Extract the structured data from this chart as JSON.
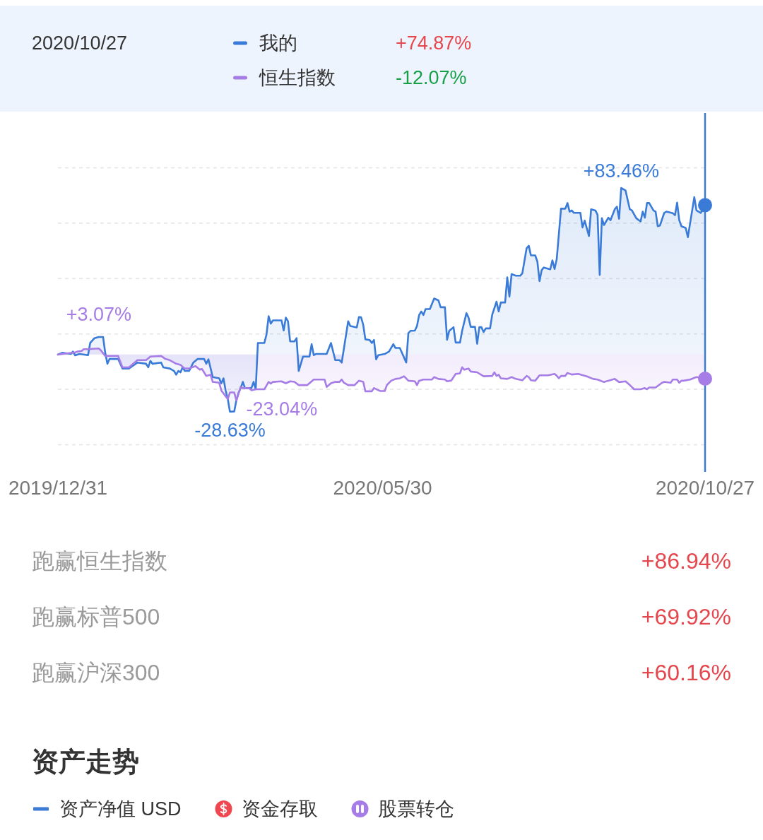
{
  "chart_data": [
    {
      "type": "area",
      "legend": "top",
      "grid": "y",
      "tick_labels": "x",
      "xlim": [
        "2019-12-31",
        "2020-10-27"
      ],
      "xticks": [
        {
          "value": "2019-12-31",
          "label": "2019/12/31"
        },
        {
          "value": "2020-05-30",
          "label": "2020/05/30"
        },
        {
          "value": "2020-10-27",
          "label": "2020/10/27"
        }
      ],
      "ylim": [
        -58.8,
        121
      ],
      "yticks": [
        {
          "value": 93.6,
          "label": null
        },
        {
          "value": 65.9,
          "label": null
        },
        {
          "value": 38.1,
          "label": null
        },
        {
          "value": 10.3,
          "label": null
        },
        {
          "value": -17.4,
          "label": null
        },
        {
          "value": -45.2,
          "label": null
        }
      ],
      "ref_lines": [
        {
          "axis": "x",
          "value": "2020-10-27",
          "color": "#3a7bd8"
        }
      ],
      "annotations": [
        "2020/10/27",
        "+74.87%",
        "-12.07%"
      ],
      "series": [
        {
          "name": "我的",
          "color": "#3a7bd8",
          "x": [
            "2019-12-31",
            "2020-01-02",
            "2020-01-06",
            "2020-01-07",
            "2020-01-08",
            "2020-01-10",
            "2020-01-14",
            "2020-01-15",
            "2020-01-17",
            "2020-01-19",
            "2020-01-21",
            "2020-01-22",
            "2020-01-23",
            "2020-01-24",
            "2020-01-28",
            "2020-01-30",
            "2020-02-02",
            "2020-02-06",
            "2020-02-10",
            "2020-02-11",
            "2020-02-12",
            "2020-02-13",
            "2020-02-17",
            "2020-02-18",
            "2020-02-21",
            "2020-02-23",
            "2020-02-24",
            "2020-02-25",
            "2020-02-26",
            "2020-02-27",
            "2020-02-28",
            "2020-03-01",
            "2020-03-03",
            "2020-03-05",
            "2020-03-08",
            "2020-03-09",
            "2020-03-10",
            "2020-03-12",
            "2020-03-15",
            "2020-03-16",
            "2020-03-17",
            "2020-03-18",
            "2020-03-19",
            "2020-03-20",
            "2020-03-22",
            "2020-03-23",
            "2020-03-24",
            "2020-03-25",
            "2020-03-26",
            "2020-03-27",
            "2020-03-30",
            "2020-03-31",
            "2020-04-01",
            "2020-04-02",
            "2020-04-05",
            "2020-04-06",
            "2020-04-07",
            "2020-04-08",
            "2020-04-09",
            "2020-04-13",
            "2020-04-14",
            "2020-04-15",
            "2020-04-16",
            "2020-04-17",
            "2020-04-19",
            "2020-04-20",
            "2020-04-21",
            "2020-04-23",
            "2020-04-26",
            "2020-04-27",
            "2020-04-28",
            "2020-04-29",
            "2020-05-04",
            "2020-05-06",
            "2020-05-08",
            "2020-05-10",
            "2020-05-11",
            "2020-05-14",
            "2020-05-15",
            "2020-05-18",
            "2020-05-19",
            "2020-05-20",
            "2020-05-21",
            "2020-05-22",
            "2020-05-24",
            "2020-05-25",
            "2020-05-26",
            "2020-05-27",
            "2020-05-28",
            "2020-05-31",
            "2020-06-02",
            "2020-06-04",
            "2020-06-05",
            "2020-06-07",
            "2020-06-08",
            "2020-06-10",
            "2020-06-11",
            "2020-06-12",
            "2020-06-14",
            "2020-06-15",
            "2020-06-16",
            "2020-06-17",
            "2020-06-18",
            "2020-06-19",
            "2020-06-21",
            "2020-06-23",
            "2020-06-25",
            "2020-06-26",
            "2020-06-28",
            "2020-06-29",
            "2020-06-30",
            "2020-07-02",
            "2020-07-03",
            "2020-07-05",
            "2020-07-06",
            "2020-07-08",
            "2020-07-09",
            "2020-07-10",
            "2020-07-12",
            "2020-07-13",
            "2020-07-14",
            "2020-07-15",
            "2020-07-16",
            "2020-07-17",
            "2020-07-19",
            "2020-07-20",
            "2020-07-22",
            "2020-07-23",
            "2020-07-24",
            "2020-07-26",
            "2020-07-27",
            "2020-07-28",
            "2020-07-29",
            "2020-07-31",
            "2020-08-02",
            "2020-08-03",
            "2020-08-05",
            "2020-08-06",
            "2020-08-07",
            "2020-08-09",
            "2020-08-10",
            "2020-08-11",
            "2020-08-12",
            "2020-08-13",
            "2020-08-16",
            "2020-08-17",
            "2020-08-18",
            "2020-08-19",
            "2020-08-21",
            "2020-08-23",
            "2020-08-24",
            "2020-08-25",
            "2020-08-26",
            "2020-08-27",
            "2020-08-30",
            "2020-08-31",
            "2020-09-01",
            "2020-09-03",
            "2020-09-04",
            "2020-09-06",
            "2020-09-07",
            "2020-09-08",
            "2020-09-09",
            "2020-09-10",
            "2020-09-12",
            "2020-09-13",
            "2020-09-15",
            "2020-09-16",
            "2020-09-17",
            "2020-09-18",
            "2020-09-20",
            "2020-09-22",
            "2020-09-23",
            "2020-09-25",
            "2020-09-27",
            "2020-09-28",
            "2020-09-29",
            "2020-09-30",
            "2020-10-01",
            "2020-10-03",
            "2020-10-04",
            "2020-10-05",
            "2020-10-06",
            "2020-10-08",
            "2020-10-09",
            "2020-10-12",
            "2020-10-13",
            "2020-10-14",
            "2020-10-15",
            "2020-10-16",
            "2020-10-18",
            "2020-10-19",
            "2020-10-21",
            "2020-10-22",
            "2020-10-23",
            "2020-10-25",
            "2020-10-27"
          ],
          "values": [
            0,
            0.9,
            0.3,
            1.5,
            -0.4,
            0.3,
            -0.3,
            5.8,
            8.2,
            8.8,
            8.8,
            0.9,
            -4.6,
            -2.2,
            -2.2,
            -7.0,
            -7.0,
            -4.0,
            -4.6,
            -6.4,
            -3.2,
            -4.6,
            -4.0,
            -6.4,
            -7.0,
            -8.2,
            -10.1,
            -8.2,
            -8.9,
            -6.4,
            -8.2,
            -8.2,
            -4.0,
            -2.2,
            -2.2,
            -4.6,
            -2.4,
            -11.3,
            -11.9,
            -14.4,
            -11.9,
            -18.0,
            -22.3,
            -28.63,
            -28.5,
            -22.9,
            -19.2,
            -16.8,
            -13.7,
            -16.8,
            -16.8,
            -13.7,
            -17.4,
            5.8,
            5.8,
            10.0,
            19.2,
            15.5,
            17.1,
            17.1,
            12.1,
            18.5,
            16.7,
            6.6,
            6.6,
            8.2,
            -8.2,
            -1.0,
            -1.0,
            5.2,
            -0.3,
            0.3,
            0.3,
            5.8,
            -2.8,
            -2.8,
            -4.0,
            16.7,
            14.3,
            13.6,
            18.8,
            18.7,
            14.9,
            7.6,
            7.3,
            5.8,
            7.3,
            -2.4,
            -0.3,
            0.3,
            1.5,
            5.2,
            3.3,
            3.3,
            0.9,
            -4.0,
            10.7,
            11.9,
            12.0,
            14.3,
            19.8,
            21.6,
            19.8,
            22.8,
            22.8,
            28.1,
            27.1,
            23.7,
            23.7,
            7.4,
            11.9,
            13.7,
            6.0,
            6.0,
            11.9,
            20.7,
            18.5,
            13.9,
            13.9,
            5.4,
            13.7,
            13.7,
            11.3,
            13.1,
            13.1,
            20.0,
            26.5,
            21.6,
            26.1,
            26.1,
            38.7,
            29.0,
            40.3,
            39.5,
            39.5,
            40.7,
            53.3,
            54.5,
            49.7,
            49.7,
            46.6,
            36.8,
            42.3,
            43.6,
            42.7,
            47.2,
            42.9,
            47.8,
            73.1,
            73.1,
            75.9,
            71.6,
            72.2,
            71.0,
            71.0,
            63.7,
            67.1,
            59.4,
            72.8,
            72.2,
            70.0,
            39.9,
            68.3,
            64.9,
            68.6,
            67.3,
            72.8,
            74.1,
            68.0,
            83.46,
            82.2,
            72.8,
            72.2,
            68.3,
            66.7,
            71.6,
            68.6,
            75.9,
            75.9,
            72.2,
            71.6,
            64.3,
            64.6,
            71.0,
            71.6,
            70.8,
            69.8,
            76.1,
            67.3,
            64.3,
            63.4,
            58.8,
            72.2,
            78.9,
            72.2,
            71.0,
            74.87
          ],
          "value_labels": [
            null,
            null,
            null,
            null,
            null,
            null,
            null,
            null,
            null,
            null,
            null,
            null,
            null,
            null,
            null,
            null,
            null,
            null,
            null,
            null,
            null,
            null,
            null,
            null,
            null,
            null,
            null,
            null,
            null,
            null,
            null,
            null,
            null,
            null,
            null,
            null,
            null,
            null,
            null,
            null,
            null,
            null,
            null,
            "-28.63%",
            null,
            null,
            null,
            null,
            null,
            null,
            null,
            null,
            null,
            null,
            null,
            null,
            null,
            null,
            null,
            null,
            null,
            null,
            null,
            null,
            null,
            null,
            null,
            null,
            null,
            null,
            null,
            null,
            null,
            null,
            null,
            null,
            null,
            null,
            null,
            null,
            null,
            null,
            null,
            null,
            null,
            null,
            null,
            null,
            null,
            null,
            null,
            null,
            null,
            null,
            null,
            null,
            null,
            null,
            null,
            null,
            null,
            null,
            null,
            null,
            null,
            null,
            null,
            null,
            null,
            null,
            null,
            null,
            null,
            null,
            null,
            null,
            null,
            null,
            null,
            null,
            null,
            null,
            null,
            null,
            null,
            null,
            null,
            null,
            null,
            null,
            null,
            null,
            null,
            null,
            null,
            null,
            null,
            null,
            null,
            null,
            null,
            null,
            null,
            null,
            null,
            null,
            null,
            null,
            null,
            null,
            null,
            null,
            null,
            null,
            null,
            null,
            null,
            null,
            null,
            null,
            null,
            null,
            null,
            null,
            null,
            null,
            null,
            null,
            null,
            "+83.46%",
            null,
            null,
            null,
            null,
            null,
            null,
            null,
            null,
            null,
            null,
            null,
            null,
            null,
            null,
            null,
            null,
            null,
            null,
            null,
            null,
            null,
            null,
            null,
            null,
            null,
            null,
            null
          ]
        },
        {
          "name": "恒生指数",
          "color": "#a67ce6",
          "x": [
            "2019-12-31",
            "2020-01-04",
            "2020-01-08",
            "2020-01-09",
            "2020-01-11",
            "2020-01-12",
            "2020-01-14",
            "2020-01-16",
            "2020-01-19",
            "2020-01-20",
            "2020-01-22",
            "2020-01-28",
            "2020-01-30",
            "2020-02-02",
            "2020-02-06",
            "2020-02-10",
            "2020-02-12",
            "2020-02-17",
            "2020-02-19",
            "2020-02-21",
            "2020-02-24",
            "2020-02-26",
            "2020-02-28",
            "2020-03-01",
            "2020-03-04",
            "2020-03-06",
            "2020-03-07",
            "2020-03-09",
            "2020-03-11",
            "2020-03-12",
            "2020-03-15",
            "2020-03-16",
            "2020-03-19",
            "2020-03-20",
            "2020-03-22",
            "2020-03-23",
            "2020-03-25",
            "2020-03-26",
            "2020-03-29",
            "2020-03-30",
            "2020-04-01",
            "2020-04-05",
            "2020-04-07",
            "2020-04-08",
            "2020-04-09",
            "2020-04-13",
            "2020-04-15",
            "2020-04-17",
            "2020-04-19",
            "2020-04-21",
            "2020-04-25",
            "2020-04-28",
            "2020-05-03",
            "2020-05-04",
            "2020-05-06",
            "2020-05-08",
            "2020-05-10",
            "2020-05-11",
            "2020-05-12",
            "2020-05-14",
            "2020-05-17",
            "2020-05-19",
            "2020-05-21",
            "2020-05-22",
            "2020-05-25",
            "2020-05-26",
            "2020-05-29",
            "2020-05-31",
            "2020-06-01",
            "2020-06-03",
            "2020-06-05",
            "2020-06-07",
            "2020-06-09",
            "2020-06-11",
            "2020-06-14",
            "2020-06-15",
            "2020-06-16",
            "2020-06-18",
            "2020-06-22",
            "2020-06-23",
            "2020-06-25",
            "2020-06-28",
            "2020-06-29",
            "2020-07-01",
            "2020-07-03",
            "2020-07-05",
            "2020-07-06",
            "2020-07-07",
            "2020-07-09",
            "2020-07-10",
            "2020-07-13",
            "2020-07-16",
            "2020-07-20",
            "2020-07-21",
            "2020-07-22",
            "2020-07-23",
            "2020-07-24",
            "2020-07-27",
            "2020-07-29",
            "2020-07-31",
            "2020-08-03",
            "2020-08-05",
            "2020-08-06",
            "2020-08-07",
            "2020-08-09",
            "2020-08-11",
            "2020-08-15",
            "2020-08-18",
            "2020-08-19",
            "2020-08-20",
            "2020-08-21",
            "2020-08-23",
            "2020-08-24",
            "2020-08-26",
            "2020-08-29",
            "2020-08-31",
            "2020-09-02",
            "2020-09-05",
            "2020-09-07",
            "2020-09-10",
            "2020-09-12",
            "2020-09-15",
            "2020-09-17",
            "2020-09-20",
            "2020-09-22",
            "2020-09-24",
            "2020-09-27",
            "2020-09-29",
            "2020-09-30",
            "2020-10-01",
            "2020-10-04",
            "2020-10-07",
            "2020-10-08",
            "2020-10-11",
            "2020-10-12",
            "2020-10-14",
            "2020-10-15",
            "2020-10-16",
            "2020-10-17",
            "2020-10-20",
            "2020-10-23",
            "2020-10-27"
          ],
          "values": [
            0,
            0.6,
            1.1,
            1.5,
            1.8,
            2.7,
            2.7,
            2.9,
            3.07,
            2.1,
            -0.7,
            -0.7,
            -6.4,
            -6.4,
            -2.8,
            -2.8,
            -1.0,
            -0.7,
            -2.2,
            -2.8,
            -4.6,
            -5.2,
            -7.0,
            -7.0,
            -5.8,
            -7.6,
            -7.2,
            -10.7,
            -10.1,
            -13.7,
            -14.1,
            -18.0,
            -22.3,
            -19.0,
            -19.0,
            -23.04,
            -16.2,
            -16.8,
            -16.8,
            -17.9,
            -17.4,
            -17.4,
            -13.7,
            -14.6,
            -13.7,
            -13.4,
            -14.4,
            -13.4,
            -13.7,
            -15.3,
            -15.3,
            -12.5,
            -12.5,
            -16.2,
            -14.4,
            -13.7,
            -13.7,
            -12.5,
            -14.1,
            -15.3,
            -15.3,
            -13.1,
            -13.7,
            -18.4,
            -18.4,
            -16.8,
            -18.3,
            -18.3,
            -15.3,
            -13.1,
            -12.2,
            -11.9,
            -10.9,
            -13.1,
            -13.4,
            -15.3,
            -13.1,
            -12.5,
            -12.5,
            -11.3,
            -12.2,
            -12.5,
            -13.4,
            -13.0,
            -9.7,
            -9.4,
            -6.4,
            -7.6,
            -7.0,
            -8.5,
            -8.9,
            -10.9,
            -10.7,
            -8.9,
            -10.7,
            -10.1,
            -11.9,
            -12.2,
            -11.3,
            -12.2,
            -12.9,
            -10.7,
            -11.3,
            -12.9,
            -13.1,
            -10.4,
            -10.4,
            -9.7,
            -10.6,
            -11.9,
            -10.7,
            -10.7,
            -9.2,
            -10.0,
            -9.7,
            -10.3,
            -10.9,
            -12.2,
            -12.5,
            -13.8,
            -13.1,
            -12.2,
            -13.8,
            -13.4,
            -15.3,
            -17.4,
            -17.4,
            -16.8,
            -17.4,
            -16.5,
            -16.5,
            -14.1,
            -13.7,
            -14.1,
            -12.5,
            -12.5,
            -14.1,
            -13.1,
            -13.1,
            -12.5,
            -11.3,
            -12.07
          ],
          "value_labels": [
            null,
            null,
            null,
            null,
            null,
            null,
            null,
            null,
            "+3.07%",
            null,
            null,
            null,
            null,
            null,
            null,
            null,
            null,
            null,
            null,
            null,
            null,
            null,
            null,
            null,
            null,
            null,
            null,
            null,
            null,
            null,
            null,
            null,
            null,
            null,
            null,
            "-23.04%",
            null,
            null,
            null,
            null,
            null,
            null,
            null,
            null,
            null,
            null,
            null,
            null,
            null,
            null,
            null,
            null,
            null,
            null,
            null,
            null,
            null,
            null,
            null,
            null,
            null,
            null,
            null,
            null,
            null,
            null,
            null,
            null,
            null,
            null,
            null,
            null,
            null,
            null,
            null,
            null,
            null,
            null,
            null,
            null,
            null,
            null,
            null,
            null,
            null,
            null,
            null,
            null,
            null,
            null,
            null,
            null,
            null,
            null,
            null,
            null,
            null,
            null,
            null,
            null,
            null,
            null,
            null,
            null,
            null,
            null,
            null,
            null,
            null,
            null,
            null,
            null,
            null,
            null,
            null,
            null,
            null,
            null,
            null,
            null,
            null,
            null,
            null,
            null,
            null,
            null,
            null,
            null,
            null,
            null,
            null,
            null,
            null,
            null,
            null,
            null,
            null,
            null,
            null,
            null,
            null,
            null
          ]
        },
        {
          "type": "scatter",
          "color": "#3a7bd8",
          "x": [
            "2020-10-27"
          ],
          "values": [
            74.87
          ]
        },
        {
          "type": "scatter",
          "color": "#a67ce6",
          "x": [
            "2020-10-27"
          ],
          "values": [
            -12.07
          ]
        }
      ]
    },
    {
      "type": "other",
      "annotations": [
        "跑赢恒生指数",
        "+86.94%",
        "跑赢标普500",
        "+69.92%",
        "跑赢沪深300",
        "+60.16%"
      ]
    },
    {
      "type": "other",
      "title": "资产走势",
      "legend": "top left",
      "series": [
        {
          "name": "资产净值 USD",
          "type": "line",
          "color": "#3a7bd8"
        },
        {
          "name": "资金存取",
          "type": "scatter",
          "color": "#ef4750"
        },
        {
          "name": "股票转仓",
          "type": "scatter",
          "color": "#a67ce6"
        }
      ]
    }
  ]
}
